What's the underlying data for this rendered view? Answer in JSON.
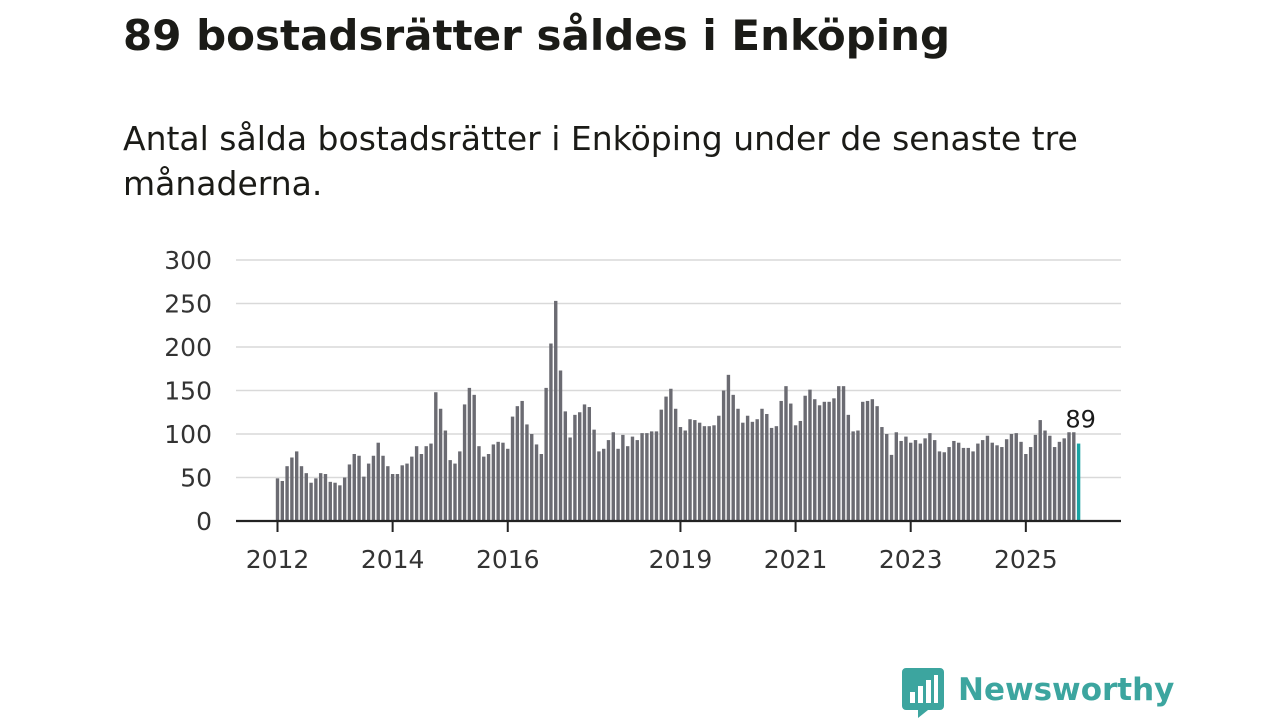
{
  "title": "89 bostadsrätter såldes i Enköping",
  "subtitle": "Antal sålda bostadsrätter i Enköping under de senaste tre månaderna.",
  "logo": {
    "text": "Newsworthy",
    "icon": "newsworthy-bar-chart-icon"
  },
  "colors": {
    "bar": "#6b6b72",
    "highlight": "#1aa3a3",
    "grid": "#d9d9d9",
    "axis": "#222222",
    "brand": "#3ca59f"
  },
  "chart_data": {
    "type": "bar",
    "title": "89 bostadsrätter såldes i Enköping",
    "xlabel": "",
    "ylabel": "",
    "ylim": [
      0,
      300
    ],
    "yticks": [
      0,
      50,
      100,
      150,
      200,
      250,
      300
    ],
    "x_tick_labels": [
      {
        "label": "2012",
        "index": 0
      },
      {
        "label": "2014",
        "index": 24
      },
      {
        "label": "2016",
        "index": 48
      },
      {
        "label": "2019",
        "index": 84
      },
      {
        "label": "2021",
        "index": 108
      },
      {
        "label": "2023",
        "index": 132
      },
      {
        "label": "2025",
        "index": 156
      }
    ],
    "start": "2012-01",
    "highlight_last": true,
    "last_value_label": "89",
    "values": [
      49,
      46,
      63,
      73,
      80,
      63,
      55,
      44,
      49,
      55,
      54,
      45,
      44,
      41,
      50,
      65,
      77,
      75,
      51,
      66,
      75,
      90,
      75,
      63,
      54,
      54,
      64,
      66,
      74,
      86,
      77,
      86,
      89,
      148,
      129,
      104,
      70,
      66,
      80,
      134,
      153,
      145,
      86,
      74,
      77,
      88,
      91,
      90,
      83,
      120,
      132,
      138,
      111,
      100,
      88,
      77,
      153,
      204,
      253,
      173,
      126,
      96,
      122,
      125,
      134,
      131,
      105,
      80,
      83,
      93,
      102,
      83,
      99,
      86,
      97,
      93,
      101,
      101,
      103,
      103,
      128,
      143,
      152,
      129,
      108,
      104,
      117,
      116,
      113,
      109,
      109,
      110,
      121,
      150,
      168,
      145,
      129,
      113,
      121,
      114,
      117,
      129,
      123,
      107,
      109,
      138,
      155,
      135,
      110,
      115,
      144,
      151,
      140,
      133,
      137,
      137,
      141,
      155,
      155,
      122,
      103,
      104,
      137,
      138,
      140,
      132,
      108,
      100,
      76,
      102,
      92,
      97,
      90,
      93,
      89,
      95,
      101,
      93,
      80,
      79,
      85,
      92,
      90,
      84,
      84,
      80,
      89,
      93,
      98,
      90,
      87,
      85,
      94,
      100,
      101,
      91,
      77,
      85,
      99,
      116,
      104,
      98,
      85,
      91,
      95,
      102,
      102,
      89
    ]
  }
}
